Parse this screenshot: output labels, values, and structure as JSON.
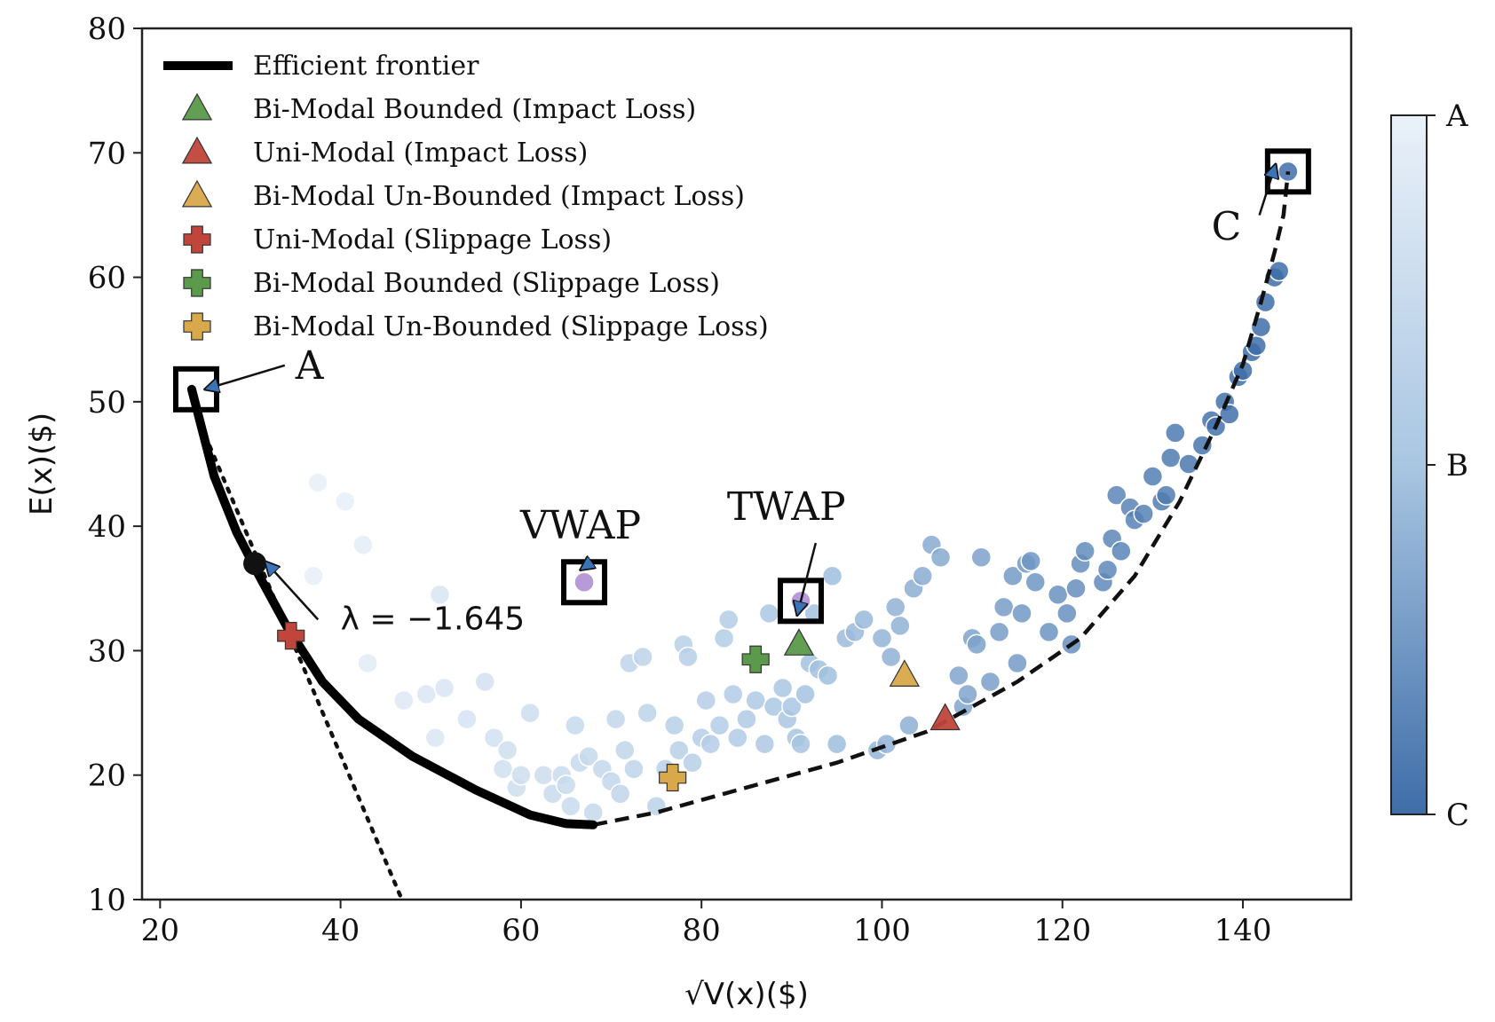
{
  "chart_data": {
    "type": "scatter",
    "xlabel": "√V(x)($)",
    "ylabel": "E(x)($)",
    "xlim": [
      18,
      152
    ],
    "ylim": [
      10,
      80
    ],
    "xticks": [
      20,
      40,
      60,
      80,
      100,
      120,
      140
    ],
    "yticks": [
      10,
      20,
      30,
      40,
      50,
      60,
      70,
      80
    ],
    "legend_position": "upper-left",
    "efficient_frontier": {
      "name": "Efficient frontier",
      "points": [
        [
          23.5,
          51
        ],
        [
          26,
          44
        ],
        [
          28.5,
          39.5
        ],
        [
          31,
          36
        ],
        [
          34,
          32
        ],
        [
          38,
          27.5
        ],
        [
          42,
          24.5
        ],
        [
          48,
          21.5
        ],
        [
          55,
          18.8
        ],
        [
          61,
          16.8
        ],
        [
          65,
          16.1
        ],
        [
          68,
          16
        ]
      ]
    },
    "frontier_extension_dashed": {
      "points": [
        [
          68,
          16
        ],
        [
          75,
          17
        ],
        [
          85,
          19
        ],
        [
          95,
          21
        ],
        [
          105,
          23.5
        ],
        [
          115,
          27.5
        ],
        [
          122,
          31
        ],
        [
          128,
          36
        ],
        [
          133,
          42
        ],
        [
          137,
          48
        ],
        [
          140,
          53
        ],
        [
          142,
          58
        ],
        [
          143.5,
          62
        ],
        [
          144.5,
          65
        ],
        [
          145,
          68.5
        ]
      ]
    },
    "tangent_dotted": {
      "points": [
        [
          24,
          49
        ],
        [
          46.8,
          10
        ]
      ]
    },
    "lambda_point": {
      "x": 30.5,
      "y": 37,
      "label": "λ = −1.645"
    },
    "markers": [
      {
        "name": "Bi-Modal Bounded (Impact Loss)",
        "shape": "triangle",
        "color": "#5a9a4a",
        "x": 90.8,
        "y": 30.5
      },
      {
        "name": "Uni-Modal (Impact Loss)",
        "shape": "triangle",
        "color": "#c0453a",
        "x": 107,
        "y": 24.5
      },
      {
        "name": "Bi-Modal Un-Bounded (Impact Loss)",
        "shape": "triangle",
        "color": "#d8a84a",
        "x": 102.5,
        "y": 28
      },
      {
        "name": "Uni-Modal (Slippage Loss)",
        "shape": "plus",
        "color": "#c0453a",
        "x": 34.5,
        "y": 31.2
      },
      {
        "name": "Bi-Modal Bounded (Slippage Loss)",
        "shape": "plus",
        "color": "#5a9a4a",
        "x": 86,
        "y": 29.3
      },
      {
        "name": "Bi-Modal Un-Bounded (Slippage Loss)",
        "shape": "plus",
        "color": "#d8a84a",
        "x": 76.8,
        "y": 19.8
      }
    ],
    "annotations": [
      {
        "label": "A",
        "box_x": 24,
        "box_y": 51,
        "text_x": 35,
        "text_y": 53
      },
      {
        "label": "C",
        "box_x": 145,
        "box_y": 68.5,
        "text_x": 137.5,
        "text_y": 64
      },
      {
        "label": "VWAP",
        "box_x": 67,
        "box_y": 35.5,
        "point_color": "#b89ad8",
        "text_x": 60.5,
        "text_y": 40
      },
      {
        "label": "TWAP",
        "box_x": 91,
        "box_y": 34,
        "point_color": "#b89ad8",
        "text_x": 84,
        "text_y": 41.5
      }
    ],
    "colorbar": {
      "labels": [
        "A",
        "B",
        "C"
      ],
      "colors": [
        "#e6eef8",
        "#a9c6e2",
        "#3e6da8"
      ]
    },
    "scatter_points": [
      [
        37.5,
        43.5
      ],
      [
        40.5,
        42
      ],
      [
        42.5,
        38.5
      ],
      [
        37,
        36
      ],
      [
        43,
        29
      ],
      [
        47,
        26
      ],
      [
        49.5,
        26.5
      ],
      [
        50.5,
        23
      ],
      [
        51.5,
        27
      ],
      [
        51,
        34.5
      ],
      [
        54,
        24.5
      ],
      [
        56,
        27.5
      ],
      [
        57,
        23
      ],
      [
        58,
        20.5
      ],
      [
        58.5,
        22
      ],
      [
        59.5,
        19
      ],
      [
        60,
        20
      ],
      [
        61,
        25
      ],
      [
        62.5,
        20
      ],
      [
        63.5,
        18.5
      ],
      [
        64.5,
        20
      ],
      [
        65,
        19.2
      ],
      [
        65.5,
        17.5
      ],
      [
        66,
        24
      ],
      [
        66.5,
        21
      ],
      [
        67.5,
        21.5
      ],
      [
        68,
        17
      ],
      [
        69,
        20.5
      ],
      [
        70,
        19.5
      ],
      [
        70.5,
        24.5
      ],
      [
        71,
        18.5
      ],
      [
        71.5,
        22
      ],
      [
        72,
        29
      ],
      [
        72.5,
        20.5
      ],
      [
        73.5,
        29.5
      ],
      [
        74,
        25
      ],
      [
        75,
        17.5
      ],
      [
        76,
        20.5
      ],
      [
        77,
        24
      ],
      [
        77.5,
        22
      ],
      [
        78,
        30.5
      ],
      [
        78.5,
        29.5
      ],
      [
        79,
        21
      ],
      [
        80,
        23
      ],
      [
        80.5,
        26
      ],
      [
        81,
        22.5
      ],
      [
        82,
        24
      ],
      [
        82.5,
        31
      ],
      [
        83,
        32.5
      ],
      [
        83.5,
        26.5
      ],
      [
        84,
        23
      ],
      [
        85,
        24.5
      ],
      [
        86,
        26
      ],
      [
        87,
        22.5
      ],
      [
        87.5,
        33
      ],
      [
        88,
        25.5
      ],
      [
        89,
        27
      ],
      [
        89.5,
        24.5
      ],
      [
        90,
        25.5
      ],
      [
        90.5,
        23
      ],
      [
        91,
        22.5
      ],
      [
        91.5,
        26.5
      ],
      [
        92,
        29
      ],
      [
        92.5,
        33
      ],
      [
        93,
        28.5
      ],
      [
        94,
        28
      ],
      [
        94.5,
        36
      ],
      [
        95,
        22.5
      ],
      [
        96,
        31
      ],
      [
        97,
        31.5
      ],
      [
        98,
        32.5
      ],
      [
        99.5,
        22
      ],
      [
        100,
        31
      ],
      [
        100.5,
        22.5
      ],
      [
        101,
        29.5
      ],
      [
        101.5,
        33.5
      ],
      [
        102,
        32
      ],
      [
        103,
        24
      ],
      [
        103.5,
        35
      ],
      [
        104.5,
        36
      ],
      [
        105.5,
        38.5
      ],
      [
        106.5,
        37.5
      ],
      [
        108.5,
        28
      ],
      [
        109,
        25.5
      ],
      [
        109.5,
        26.5
      ],
      [
        110,
        31
      ],
      [
        110.5,
        30.5
      ],
      [
        111,
        37.5
      ],
      [
        112,
        27.5
      ],
      [
        113,
        31.5
      ],
      [
        113.5,
        33.5
      ],
      [
        114.5,
        36
      ],
      [
        115,
        29
      ],
      [
        115.5,
        33
      ],
      [
        116,
        37
      ],
      [
        116.5,
        37.2
      ],
      [
        117,
        35.5
      ],
      [
        118.5,
        31.5
      ],
      [
        119.5,
        34.5
      ],
      [
        120.5,
        33
      ],
      [
        121,
        30.5
      ],
      [
        121.5,
        35
      ],
      [
        122,
        37
      ],
      [
        122.5,
        38
      ],
      [
        124.5,
        35.5
      ],
      [
        125,
        36.5
      ],
      [
        125.5,
        39
      ],
      [
        126,
        42.5
      ],
      [
        126.5,
        38
      ],
      [
        127.5,
        41.5
      ],
      [
        128,
        40.5
      ],
      [
        129,
        41
      ],
      [
        130,
        44
      ],
      [
        131,
        42
      ],
      [
        131.5,
        42.5
      ],
      [
        132,
        45.5
      ],
      [
        132.5,
        47.5
      ],
      [
        134,
        45
      ],
      [
        135.5,
        46.5
      ],
      [
        136.5,
        48.5
      ],
      [
        137,
        48
      ],
      [
        138,
        50
      ],
      [
        138.5,
        49
      ],
      [
        139.5,
        52
      ],
      [
        140,
        52.5
      ],
      [
        141,
        54
      ],
      [
        141.5,
        54.5
      ],
      [
        142,
        56
      ],
      [
        142.5,
        58
      ],
      [
        143.5,
        60
      ],
      [
        144,
        60.5
      ],
      [
        145,
        68.5
      ]
    ],
    "title": ""
  },
  "ui": {
    "legend_frontier": "Efficient frontier",
    "legend_items": [
      "Bi-Modal Bounded (Impact Loss)",
      "Uni-Modal (Impact Loss)",
      "Bi-Modal Un-Bounded (Impact Loss)",
      "Uni-Modal (Slippage Loss)",
      "Bi-Modal Bounded (Slippage Loss)",
      "Bi-Modal Un-Bounded (Slippage Loss)"
    ]
  }
}
